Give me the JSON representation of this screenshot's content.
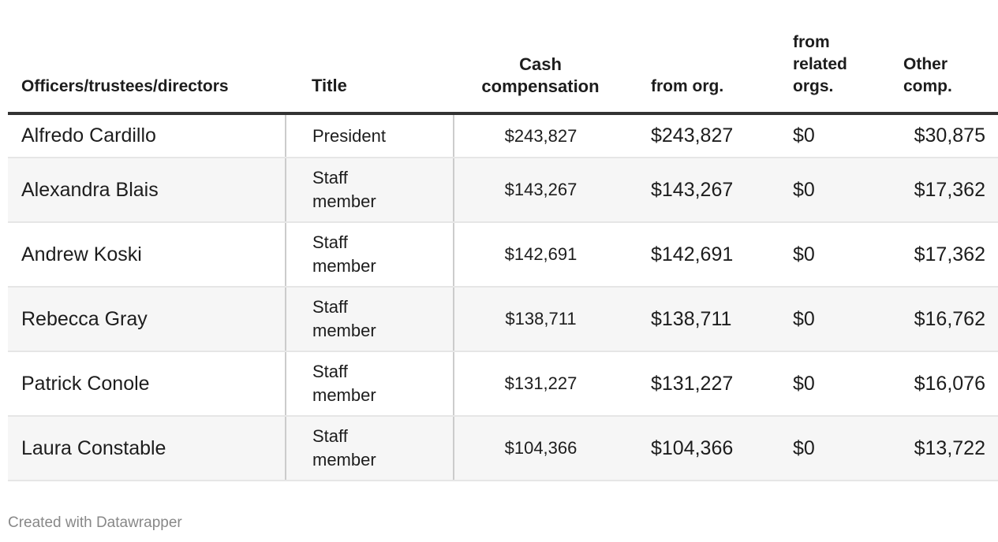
{
  "headers": {
    "name": "Officers/trustees/directors",
    "title": "Title",
    "cash": "Cash compensation",
    "from_org": "from org.",
    "related": "from related orgs.",
    "other": "Other comp."
  },
  "rows": [
    {
      "name": "Alfredo Cardillo",
      "title": "President",
      "cash": "$243,827",
      "from_org": "$243,827",
      "related": "$0",
      "other": "$30,875"
    },
    {
      "name": "Alexandra Blais",
      "title": "Staff member",
      "cash": "$143,267",
      "from_org": "$143,267",
      "related": "$0",
      "other": "$17,362"
    },
    {
      "name": "Andrew Koski",
      "title": "Staff member",
      "cash": "$142,691",
      "from_org": "$142,691",
      "related": "$0",
      "other": "$17,362"
    },
    {
      "name": "Rebecca Gray",
      "title": "Staff member",
      "cash": "$138,711",
      "from_org": "$138,711",
      "related": "$0",
      "other": "$16,762"
    },
    {
      "name": "Patrick Conole",
      "title": "Staff member",
      "cash": "$131,227",
      "from_org": "$131,227",
      "related": "$0",
      "other": "$16,076"
    },
    {
      "name": "Laura Constable",
      "title": "Staff member",
      "cash": "$104,366",
      "from_org": "$104,366",
      "related": "$0",
      "other": "$13,722"
    }
  ],
  "footer": "Created with Datawrapper"
}
